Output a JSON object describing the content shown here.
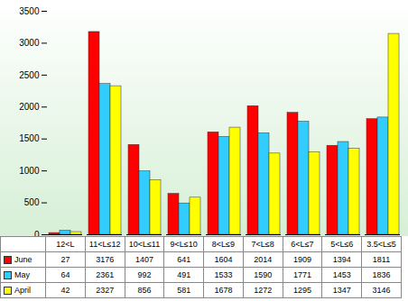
{
  "chart_data": {
    "type": "bar",
    "categories": [
      "12<L",
      "11<L≤12",
      "10<L≤11",
      "9<L≤10",
      "8<L≤9",
      "7<L≤8",
      "6<L≤7",
      "5<L≤6",
      "3.5<L≤5"
    ],
    "series": [
      {
        "name": "June",
        "color": "#ff0000",
        "values": [
          27,
          3176,
          1407,
          641,
          1604,
          2014,
          1909,
          1394,
          1811
        ]
      },
      {
        "name": "May",
        "color": "#33ccff",
        "values": [
          64,
          2361,
          992,
          491,
          1533,
          1590,
          1771,
          1453,
          1836
        ]
      },
      {
        "name": "April",
        "color": "#ffff00",
        "values": [
          42,
          2327,
          856,
          581,
          1678,
          1272,
          1295,
          1347,
          3146
        ]
      }
    ],
    "ylim": [
      0,
      3500
    ],
    "yticks": [
      0,
      500,
      1000,
      1500,
      2000,
      2500,
      3000,
      3500
    ],
    "grid": false
  }
}
